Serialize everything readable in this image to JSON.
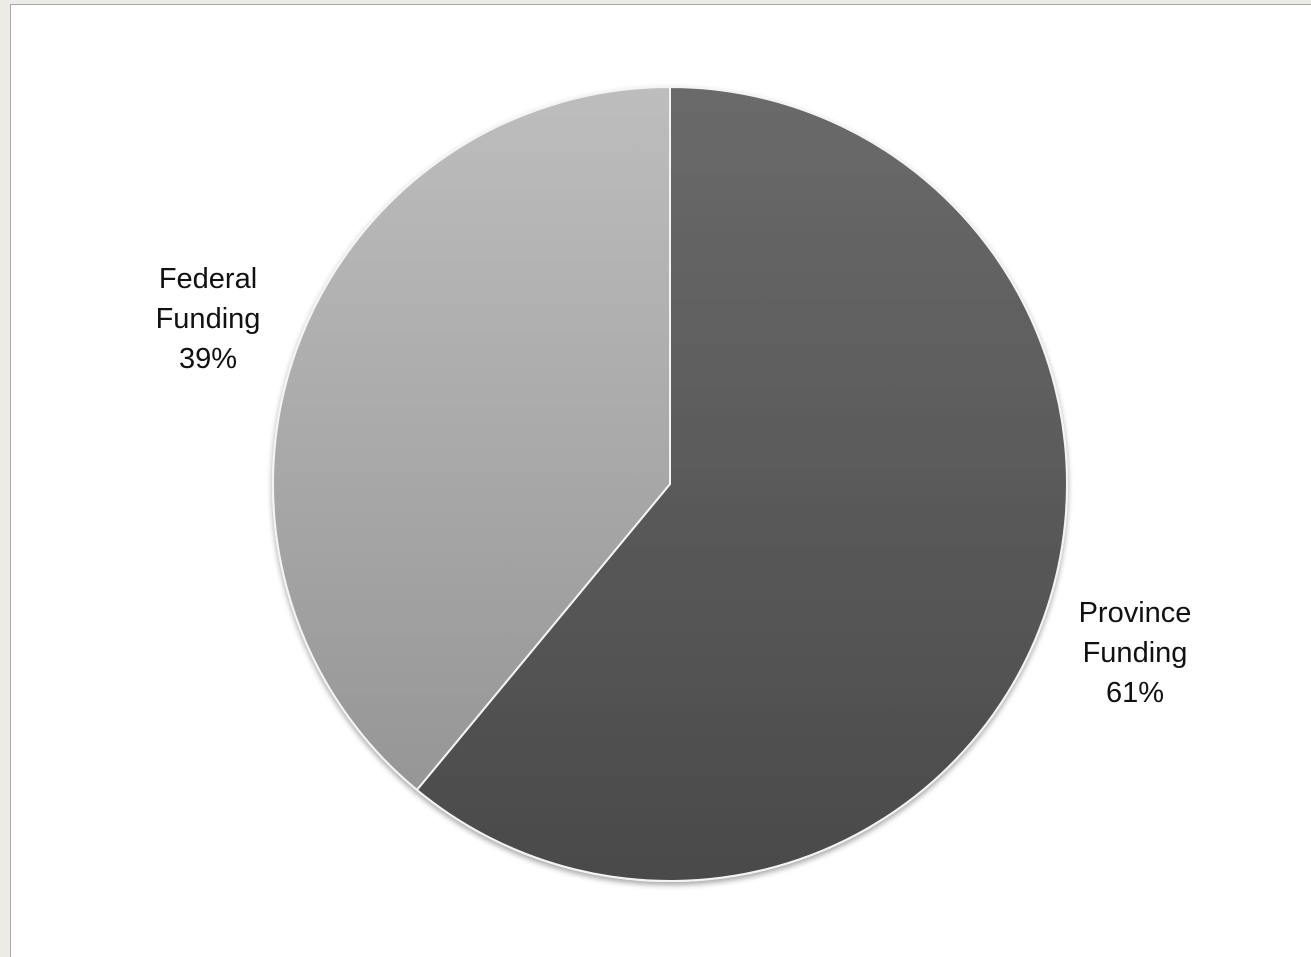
{
  "chart_data": {
    "type": "pie",
    "slices": [
      {
        "name": "Province Funding",
        "label_lines": [
          "Province",
          "Funding",
          "61%"
        ],
        "value": 61,
        "color": "#5a5a5a"
      },
      {
        "name": "Federal Funding",
        "label_lines": [
          "Federal",
          "Funding",
          "39%"
        ],
        "value": 39,
        "color": "#a9a9a9"
      }
    ],
    "start_angle": "12 o'clock",
    "direction": "clockwise",
    "legend": "none"
  }
}
